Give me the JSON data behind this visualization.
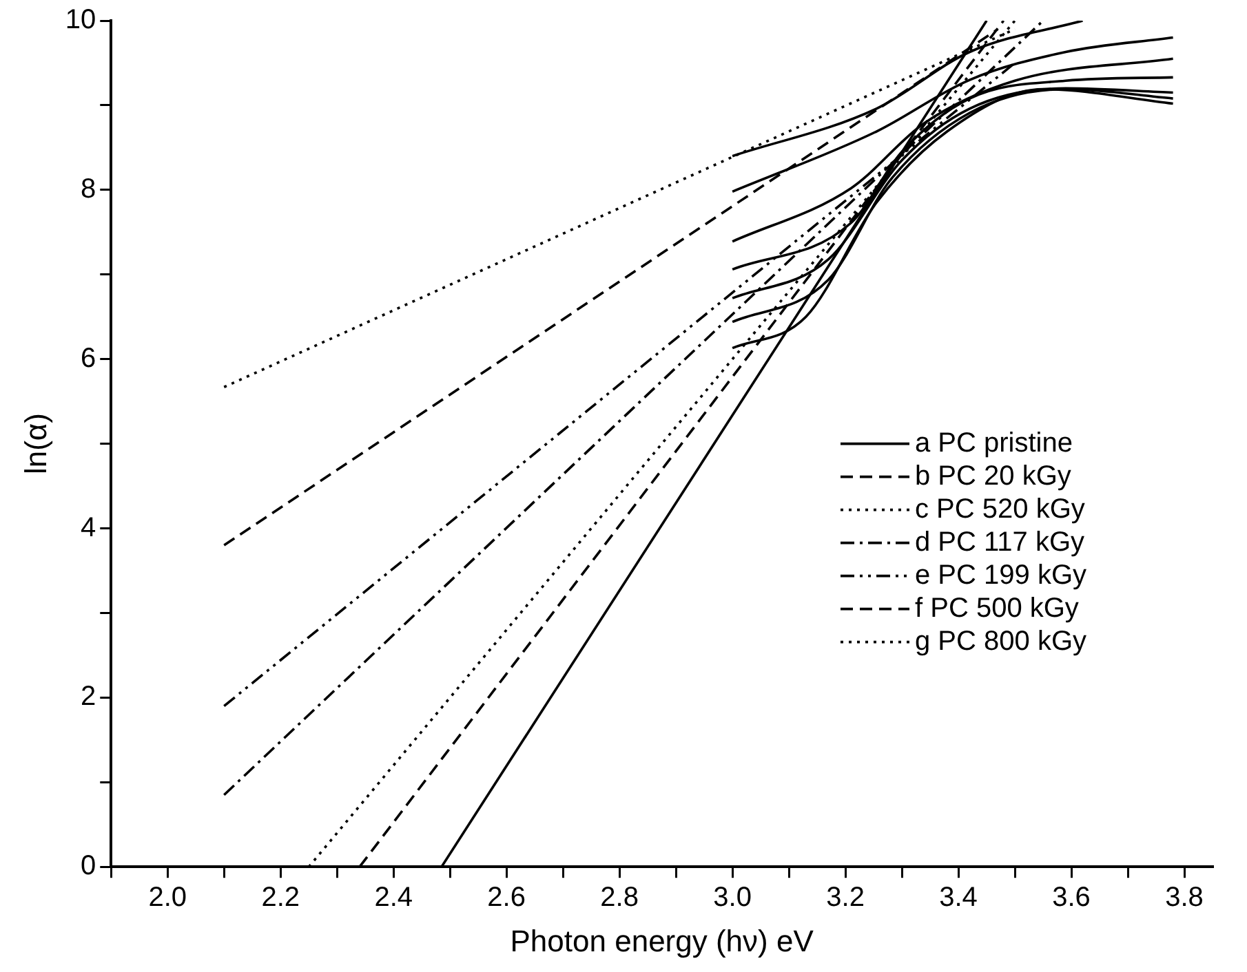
{
  "chart_data": {
    "type": "line",
    "xlabel": "Photon energy (hν) eV",
    "ylabel": "ln(α)",
    "xlim": [
      1.9,
      3.85
    ],
    "ylim": [
      0,
      10
    ],
    "xticks": [
      {
        "value": 1.9,
        "label": null
      },
      {
        "value": 2.0,
        "label": "2.0"
      },
      {
        "value": 2.1,
        "label": null
      },
      {
        "value": 2.2,
        "label": "2.2"
      },
      {
        "value": 2.3,
        "label": null
      },
      {
        "value": 2.4,
        "label": "2.4"
      },
      {
        "value": 2.5,
        "label": null
      },
      {
        "value": 2.6,
        "label": "2.6"
      },
      {
        "value": 2.7,
        "label": null
      },
      {
        "value": 2.8,
        "label": "2.8"
      },
      {
        "value": 2.9,
        "label": null
      },
      {
        "value": 3.0,
        "label": "3.0"
      },
      {
        "value": 3.1,
        "label": null
      },
      {
        "value": 3.2,
        "label": "3.2"
      },
      {
        "value": 3.3,
        "label": null
      },
      {
        "value": 3.4,
        "label": "3.4"
      },
      {
        "value": 3.5,
        "label": null
      },
      {
        "value": 3.6,
        "label": "3.6"
      },
      {
        "value": 3.7,
        "label": null
      },
      {
        "value": 3.8,
        "label": "3.8"
      }
    ],
    "yticks": [
      0,
      {
        "value": 1,
        "label": null
      },
      2,
      {
        "value": 3,
        "label": null
      },
      4,
      {
        "value": 5,
        "label": null
      },
      6,
      {
        "value": 7,
        "label": null
      },
      8,
      {
        "value": 9,
        "label": null
      },
      10
    ],
    "grid": false,
    "legend": "right",
    "marker": "none",
    "series": [
      {
        "type": "line",
        "name": "a PC pristine",
        "color": "#000000",
        "line_style": "solid",
        "x": [
          2.485,
          3.45
        ],
        "values": [
          0,
          10
        ]
      },
      {
        "type": "line",
        "name": "b PC 20 kGy",
        "color": "#000000",
        "line_style": "dashed",
        "x": [
          2.34,
          3.48
        ],
        "values": [
          0,
          10
        ]
      },
      {
        "type": "line",
        "name": "c PC 520 kGy",
        "color": "#000000",
        "line_style": "dotted",
        "x": [
          2.25,
          3.5
        ],
        "values": [
          0,
          10
        ]
      },
      {
        "type": "line",
        "name": "d PC 117 kGy",
        "color": "#000000",
        "line_style": "dashdot",
        "x": [
          2.1,
          3.55
        ],
        "values": [
          0.85,
          10
        ]
      },
      {
        "type": "line",
        "name": "e PC 199 kGy",
        "color": "#000000",
        "line_style": "dashdotdot",
        "x": [
          2.1,
          3.5
        ],
        "values": [
          1.9,
          9.5
        ]
      },
      {
        "type": "line",
        "name": "f PC 500 kGy",
        "color": "#000000",
        "line_style": "dashed",
        "x": [
          2.1,
          3.47
        ],
        "values": [
          3.8,
          9.9
        ]
      },
      {
        "type": "line",
        "name": "g PC 800 kGy",
        "color": "#000000",
        "line_style": "dotted",
        "x": [
          2.1,
          3.5
        ],
        "values": [
          5.67,
          9.9
        ]
      },
      {
        "type": "line",
        "color": "#000000",
        "line_style": "solid",
        "x": [
          3.0,
          3.13,
          3.255,
          3.38,
          3.55,
          3.78
        ],
        "values": [
          6.13,
          6.5,
          7.85,
          8.69,
          9.19,
          9.02
        ]
      },
      {
        "type": "line",
        "color": "#000000",
        "line_style": "solid",
        "x": [
          3.0,
          3.17,
          3.28,
          3.42,
          3.59,
          3.78
        ],
        "values": [
          6.44,
          6.94,
          8.12,
          8.91,
          9.19,
          9.08
        ]
      },
      {
        "type": "line",
        "color": "#000000",
        "line_style": "solid",
        "x": [
          3.0,
          3.17,
          3.3,
          3.42,
          3.59,
          3.78
        ],
        "values": [
          6.72,
          7.18,
          8.35,
          8.96,
          9.2,
          9.15
        ]
      },
      {
        "type": "line",
        "color": "#000000",
        "line_style": "solid",
        "x": [
          3.0,
          3.21,
          3.3,
          3.42,
          3.59,
          3.78
        ],
        "values": [
          7.06,
          7.61,
          8.45,
          9.08,
          9.29,
          9.33
        ]
      },
      {
        "type": "line",
        "color": "#000000",
        "line_style": "solid",
        "x": [
          3.0,
          3.21,
          3.34,
          3.5,
          3.78
        ],
        "values": [
          7.39,
          8.02,
          8.79,
          9.29,
          9.55
        ]
      },
      {
        "type": "line",
        "color": "#000000",
        "line_style": "solid",
        "x": [
          3.0,
          3.255,
          3.42,
          3.59,
          3.78
        ],
        "values": [
          7.98,
          8.69,
          9.3,
          9.63,
          9.8
        ]
      },
      {
        "type": "line",
        "color": "#000000",
        "line_style": "solid",
        "x": [
          3.0,
          3.255,
          3.42,
          3.62
        ],
        "values": [
          8.4,
          8.96,
          9.63,
          10
        ]
      }
    ]
  }
}
